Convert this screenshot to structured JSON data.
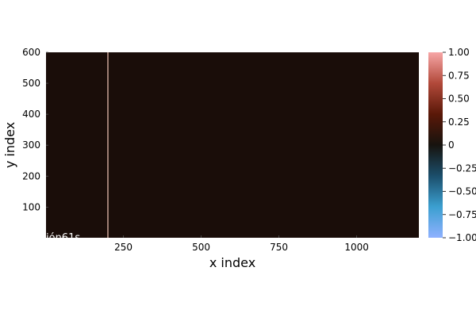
{
  "chart_data": {
    "type": "heatmap",
    "xlabel": "x index",
    "ylabel": "y index",
    "xlim": [
      1,
      1200
    ],
    "ylim": [
      1,
      600
    ],
    "x_ticks": [
      250,
      500,
      750,
      1000
    ],
    "y_ticks": [
      100,
      200,
      300,
      400,
      500,
      600
    ],
    "background_value": 0.0,
    "vertical_line": {
      "x": 200,
      "value": 1.0
    },
    "colorbar": {
      "min": -1.0,
      "max": 1.0,
      "ticks": [
        {
          "value": 1.0,
          "label": "1.00"
        },
        {
          "value": 0.75,
          "label": "0.75"
        },
        {
          "value": 0.5,
          "label": "0.50"
        },
        {
          "value": 0.25,
          "label": "0.25"
        },
        {
          "value": 0.0,
          "label": "0"
        },
        {
          "value": -0.25,
          "label": "−0.25"
        },
        {
          "value": -0.5,
          "label": "−0.50"
        },
        {
          "value": -0.75,
          "label": "−0.75"
        },
        {
          "value": -1.0,
          "label": "−1.00"
        }
      ],
      "colors": [
        "#8fb1ff",
        "#3b9fd0",
        "#1b4e6b",
        "#17130e",
        "#5a1808",
        "#b2493a",
        "#f7a6a6"
      ]
    },
    "overlay_text": "ión61s",
    "grid": false
  }
}
